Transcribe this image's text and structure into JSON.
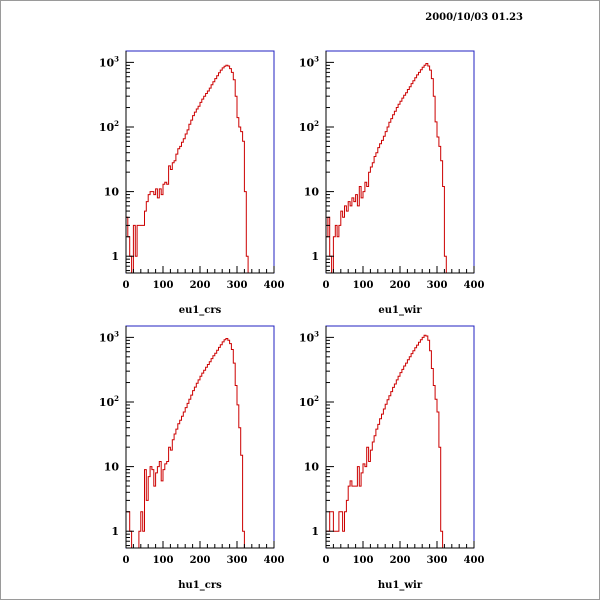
{
  "header": {
    "timestamp": "2000/10/03   01.23"
  },
  "colors": {
    "frame": "#2020c0",
    "histogram": "#cc0000",
    "axis": "#000000"
  },
  "chart_data": [
    {
      "type": "histogram",
      "title": "",
      "xlabel": "eu1_crs",
      "ylabel": "",
      "xlim": [
        0,
        400
      ],
      "ylim": [
        0.55,
        1500
      ],
      "yscale": "log",
      "x_ticks": [
        "0",
        "100",
        "200",
        "300",
        "400"
      ],
      "y_ticks": [
        "1",
        "10",
        "10^2",
        "10^3"
      ],
      "bin_width": 5,
      "bins_start": 0,
      "values": [
        4,
        2,
        1,
        0,
        3,
        1,
        3,
        3,
        3,
        3,
        5,
        7,
        9,
        10,
        10,
        9,
        11,
        8,
        11,
        9,
        13,
        14,
        13,
        25,
        22,
        28,
        30,
        38,
        46,
        50,
        58,
        66,
        78,
        90,
        110,
        128,
        150,
        170,
        190,
        210,
        240,
        270,
        300,
        330,
        360,
        400,
        450,
        500,
        560,
        620,
        690,
        760,
        820,
        870,
        900,
        880,
        800,
        700,
        540,
        300,
        140,
        100,
        85,
        60,
        10,
        1,
        0
      ]
    },
    {
      "type": "histogram",
      "title": "",
      "xlabel": "eu1_wir",
      "ylabel": "",
      "xlim": [
        0,
        400
      ],
      "ylim": [
        0.55,
        1500
      ],
      "yscale": "log",
      "x_ticks": [
        "0",
        "100",
        "200",
        "300",
        "400"
      ],
      "y_ticks": [
        "1",
        "10",
        "10^2",
        "10^3"
      ],
      "bin_width": 5,
      "bins_start": 0,
      "values": [
        2,
        4,
        1,
        0,
        2,
        3,
        2,
        3,
        5,
        4,
        6,
        5,
        7,
        6,
        8,
        7,
        9,
        6,
        12,
        8,
        10,
        14,
        12,
        20,
        24,
        28,
        35,
        40,
        48,
        55,
        62,
        72,
        85,
        100,
        118,
        135,
        155,
        175,
        200,
        225,
        250,
        280,
        310,
        340,
        380,
        420,
        470,
        520,
        580,
        640,
        700,
        770,
        840,
        900,
        960,
        880,
        760,
        560,
        300,
        120,
        70,
        50,
        30,
        12,
        1,
        0
      ]
    },
    {
      "type": "histogram",
      "title": "",
      "xlabel": "hu1_crs",
      "ylabel": "",
      "xlim": [
        0,
        400
      ],
      "ylim": [
        0.55,
        1500
      ],
      "yscale": "log",
      "x_ticks": [
        "0",
        "100",
        "200",
        "300",
        "400"
      ],
      "y_ticks": [
        "1",
        "10",
        "10^2",
        "10^3"
      ],
      "bin_width": 5,
      "bins_start": 0,
      "values": [
        2,
        2,
        1,
        0,
        0,
        0,
        0,
        1,
        2,
        1,
        9,
        3,
        7,
        10,
        9,
        5,
        8,
        10,
        12,
        6,
        9,
        11,
        12,
        20,
        18,
        26,
        32,
        38,
        46,
        52,
        60,
        70,
        82,
        95,
        110,
        128,
        150,
        170,
        195,
        220,
        250,
        280,
        310,
        345,
        380,
        420,
        470,
        520,
        570,
        630,
        700,
        770,
        850,
        920,
        960,
        900,
        800,
        650,
        400,
        180,
        90,
        40,
        15,
        1,
        0
      ]
    },
    {
      "type": "histogram",
      "title": "",
      "xlabel": "hu1_wir",
      "ylabel": "",
      "xlim": [
        0,
        400
      ],
      "ylim": [
        0.55,
        1500
      ],
      "yscale": "log",
      "x_ticks": [
        "0",
        "100",
        "200",
        "300",
        "400"
      ],
      "y_ticks": [
        "1",
        "10",
        "10^2",
        "10^3"
      ],
      "bin_width": 5,
      "bins_start": 0,
      "values": [
        1,
        1,
        2,
        2,
        1,
        1,
        1,
        2,
        2,
        1,
        2,
        3,
        5,
        6,
        5,
        5,
        5,
        10,
        5,
        8,
        11,
        10,
        20,
        12,
        18,
        24,
        30,
        38,
        45,
        55,
        65,
        78,
        92,
        108,
        125,
        145,
        168,
        190,
        220,
        250,
        285,
        320,
        360,
        400,
        450,
        500,
        560,
        620,
        690,
        760,
        840,
        920,
        1000,
        1080,
        1050,
        900,
        620,
        330,
        180,
        110,
        70,
        20,
        1,
        0
      ]
    }
  ]
}
